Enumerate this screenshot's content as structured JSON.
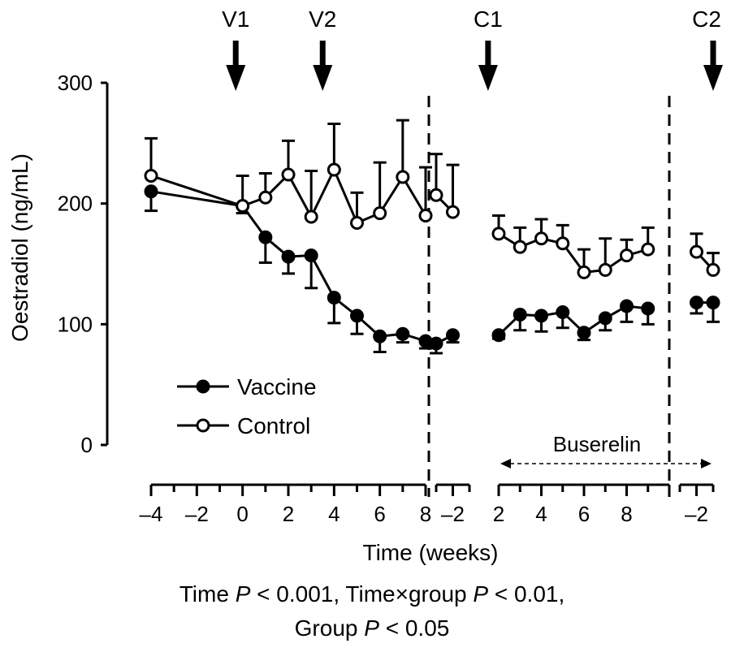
{
  "chart_data": {
    "type": "line",
    "ylabel": "Oestradiol (ng/mL)",
    "xlabel": "Time (weeks)",
    "ylim": [
      0,
      300
    ],
    "yticks": [
      0,
      100,
      200,
      300
    ],
    "grid": false,
    "legend_position": "lower-left",
    "segments": [
      {
        "x_start": -4,
        "x_end": 8,
        "tick_labels": [
          "–4",
          "–2",
          "0",
          "2",
          "4",
          "6",
          "8"
        ],
        "tick_values": [
          -4,
          -2,
          0,
          2,
          4,
          6,
          8
        ]
      },
      {
        "x_start": -3,
        "x_end": -1,
        "tick_labels": [
          "–2"
        ],
        "tick_values": [
          -2
        ]
      },
      {
        "x_start": 2,
        "x_end": 10,
        "tick_labels": [
          "2",
          "4",
          "6",
          "8"
        ],
        "tick_values": [
          2,
          4,
          6,
          8
        ]
      },
      {
        "x_start": -3,
        "x_end": -1,
        "tick_labels": [
          "–2"
        ],
        "tick_values": [
          -2
        ]
      }
    ],
    "events": [
      {
        "label": "V1",
        "segment": 0,
        "x": -0.3
      },
      {
        "label": "V2",
        "segment": 0,
        "x": 3.5
      },
      {
        "label": "C1",
        "segment": 2,
        "x": 1.5
      },
      {
        "label": "C2",
        "segment": 3,
        "x": -1
      }
    ],
    "annotations": {
      "buserelin_label": "Buserelin"
    },
    "series": [
      {
        "name": "Vaccine",
        "marker": "filled-circle",
        "segments": [
          [
            {
              "x": -4,
              "y": 210,
              "err": 16
            },
            {
              "x": 0,
              "y": 198,
              "err": 6
            },
            {
              "x": 1,
              "y": 172,
              "err": 21
            },
            {
              "x": 2,
              "y": 156,
              "err": 14
            },
            {
              "x": 3,
              "y": 157,
              "err": 27
            },
            {
              "x": 4,
              "y": 122,
              "err": 21
            },
            {
              "x": 5,
              "y": 107,
              "err": 15
            },
            {
              "x": 6,
              "y": 90,
              "err": 13
            },
            {
              "x": 7,
              "y": 92,
              "err": 7
            },
            {
              "x": 8,
              "y": 86,
              "err": 6
            }
          ],
          [
            {
              "x": -3,
              "y": 84,
              "err": 8
            },
            {
              "x": -2,
              "y": 91,
              "err": 6
            }
          ],
          [
            {
              "x": 2,
              "y": 91,
              "err": 3
            },
            {
              "x": 3,
              "y": 108,
              "err": 13
            },
            {
              "x": 4,
              "y": 107,
              "err": 13
            },
            {
              "x": 5,
              "y": 110,
              "err": 13
            },
            {
              "x": 6,
              "y": 93,
              "err": 6
            },
            {
              "x": 7,
              "y": 105,
              "err": 10
            },
            {
              "x": 8,
              "y": 115,
              "err": 13
            },
            {
              "x": 9,
              "y": 113,
              "err": 13
            }
          ],
          [
            {
              "x": -2,
              "y": 118,
              "err": 9
            },
            {
              "x": -1,
              "y": 118,
              "err": 16
            }
          ]
        ]
      },
      {
        "name": "Control",
        "marker": "open-circle",
        "segments": [
          [
            {
              "x": -4,
              "y": 223,
              "err": 31
            },
            {
              "x": 0,
              "y": 198,
              "err": 25
            },
            {
              "x": 1,
              "y": 205,
              "err": 20
            },
            {
              "x": 2,
              "y": 224,
              "err": 28
            },
            {
              "x": 3,
              "y": 189,
              "err": 38
            },
            {
              "x": 4,
              "y": 228,
              "err": 38
            },
            {
              "x": 5,
              "y": 184,
              "err": 25
            },
            {
              "x": 6,
              "y": 192,
              "err": 42
            },
            {
              "x": 7,
              "y": 222,
              "err": 47
            },
            {
              "x": 8,
              "y": 190,
              "err": 40
            }
          ],
          [
            {
              "x": -3,
              "y": 207,
              "err": 34
            },
            {
              "x": -2,
              "y": 193,
              "err": 39
            }
          ],
          [
            {
              "x": 2,
              "y": 175,
              "err": 15
            },
            {
              "x": 3,
              "y": 164,
              "err": 16
            },
            {
              "x": 4,
              "y": 171,
              "err": 16
            },
            {
              "x": 5,
              "y": 167,
              "err": 15
            },
            {
              "x": 6,
              "y": 143,
              "err": 19
            },
            {
              "x": 7,
              "y": 145,
              "err": 26
            },
            {
              "x": 8,
              "y": 157,
              "err": 13
            },
            {
              "x": 9,
              "y": 162,
              "err": 18
            }
          ],
          [
            {
              "x": -2,
              "y": 160,
              "err": 15
            },
            {
              "x": -1,
              "y": 145,
              "err": 14
            }
          ]
        ]
      }
    ],
    "stats_line1": {
      "a": "Time ",
      "p1": "P",
      "b": " < 0.001,  Time",
      "times": "×",
      "c": "group ",
      "p2": "P",
      "d": " < 0.01,"
    },
    "stats_line2": {
      "a": "Group ",
      "p": "P",
      "b": " < 0.05"
    }
  }
}
